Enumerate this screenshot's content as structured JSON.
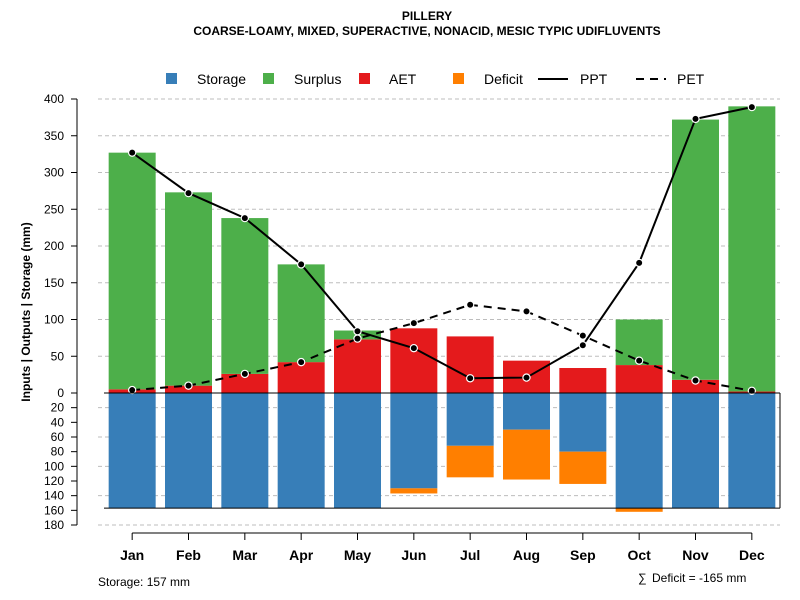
{
  "chart_data": {
    "type": "bar",
    "title": "PILLERY",
    "subtitle": "COARSE-LOAMY, MIXED, SUPERACTIVE, NONACID, MESIC TYPIC UDIFLUVENTS",
    "ylabel": "Inputs | Outputs | Storage    (mm)",
    "categories": [
      "Jan",
      "Feb",
      "Mar",
      "Apr",
      "May",
      "Jun",
      "Jul",
      "Aug",
      "Sep",
      "Oct",
      "Nov",
      "Dec"
    ],
    "ylim_upper": [
      0,
      400
    ],
    "ylim_lower": [
      0,
      180
    ],
    "upper_ticks": [
      "0",
      "50",
      "100",
      "150",
      "200",
      "250",
      "300",
      "350",
      "400"
    ],
    "lower_ticks": [
      "0",
      "20",
      "40",
      "60",
      "80",
      "100",
      "120",
      "140",
      "160",
      "180"
    ],
    "series": [
      {
        "name": "Storage",
        "color": "#377EB8",
        "values": [
          157,
          157,
          157,
          157,
          157,
          130,
          72,
          50,
          80,
          157,
          157,
          157
        ]
      },
      {
        "name": "Surplus",
        "color": "#4DAF4A",
        "values": [
          322,
          263,
          212,
          133,
          12,
          0,
          0,
          0,
          0,
          62,
          354,
          388
        ]
      },
      {
        "name": "AET",
        "color": "#E41A1C",
        "values": [
          5,
          10,
          26,
          42,
          73,
          88,
          77,
          44,
          34,
          38,
          18,
          2
        ]
      },
      {
        "name": "Deficit",
        "color": "#FF7F00",
        "values": [
          0,
          0,
          0,
          0,
          0,
          7,
          43,
          68,
          44,
          5,
          0,
          0
        ]
      },
      {
        "name": "PPT",
        "color": "#000000",
        "values": [
          327,
          272,
          238,
          175,
          84,
          61,
          20,
          21,
          65,
          177,
          373,
          389
        ]
      },
      {
        "name": "PET",
        "color": "#000000",
        "values": [
          4,
          10,
          26,
          42,
          74,
          95,
          120,
          111,
          78,
          44,
          17,
          3
        ]
      }
    ],
    "legend": [
      "Storage",
      "Surplus",
      "AET",
      "Deficit",
      "PPT",
      "PET"
    ],
    "legend_position": "top",
    "storage_note": "Storage: 157 mm",
    "deficit_note": "Deficit = -165 mm",
    "sum_symbol": "∑"
  }
}
